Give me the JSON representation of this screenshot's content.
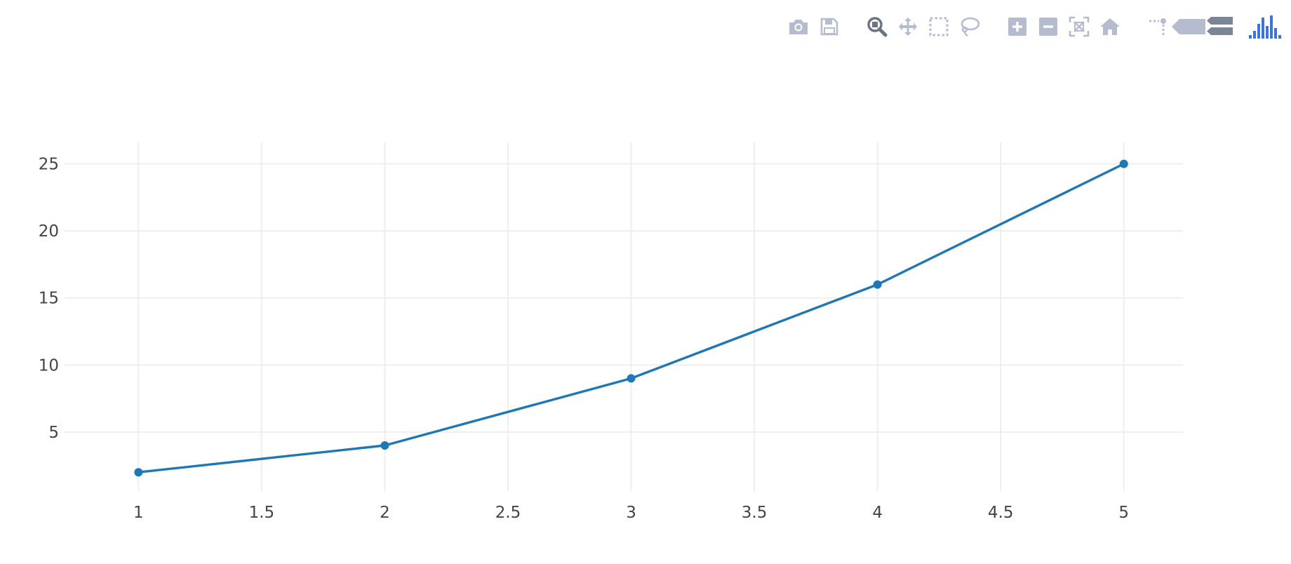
{
  "modebar": {
    "groups": [
      [
        "camera-icon",
        "save-icon"
      ],
      [
        "zoom-icon",
        "pan-icon",
        "box-select-icon",
        "lasso-select-icon"
      ],
      [
        "zoom-in-icon",
        "zoom-out-icon",
        "autoscale-icon",
        "reset-axes-icon"
      ],
      [
        "toggle-spike-lines-icon",
        "hover-closest-icon",
        "hover-compare-icon"
      ],
      [
        "plotly-logo-icon"
      ]
    ],
    "active": "zoom-icon",
    "colors": {
      "inactive": "#b5bcd0",
      "active": "#6b7386",
      "dark": "#7c8497",
      "logo": "#3f73d9"
    }
  },
  "chart_data": {
    "type": "line",
    "mode": "lines+markers",
    "x": [
      1,
      2,
      3,
      4,
      5
    ],
    "series": [
      {
        "values": [
          2,
          4,
          9,
          16,
          25
        ],
        "color": "#1f77b4"
      }
    ],
    "x_ticks": [
      "1",
      "1.5",
      "2",
      "2.5",
      "3",
      "3.5",
      "4",
      "4.5",
      "5"
    ],
    "y_ticks": [
      "5",
      "10",
      "15",
      "20",
      "25"
    ],
    "xlim": [
      0.7,
      5.24
    ],
    "ylim": [
      0.6,
      26.6
    ],
    "grid": true,
    "title": "",
    "xlabel": "",
    "ylabel": ""
  }
}
